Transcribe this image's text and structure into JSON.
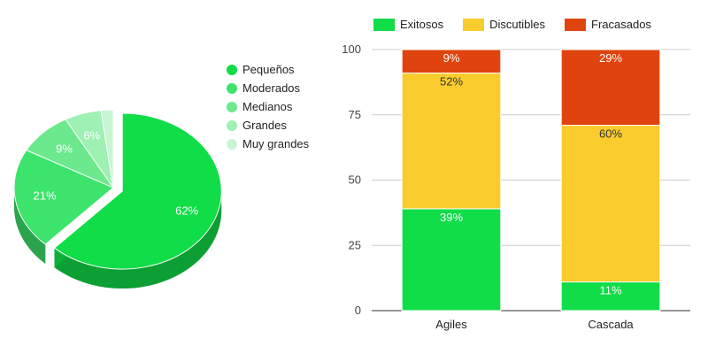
{
  "chart_data": [
    {
      "type": "pie",
      "style": "3d-exploded",
      "legend_position": "right",
      "slices": [
        {
          "label": "Pequeños",
          "value": 62,
          "value_label": "62%",
          "color": "#10dd47"
        },
        {
          "label": "Moderados",
          "value": 21,
          "value_label": "21%",
          "color": "#3de46b"
        },
        {
          "label": "Medianos",
          "value": 9,
          "value_label": "9%",
          "color": "#6be98c"
        },
        {
          "label": "Grandes",
          "value": 6,
          "value_label": "6%",
          "color": "#9ef0b3"
        },
        {
          "label": "Muy grandes",
          "value": 2,
          "value_label": "",
          "color": "#c7f6d2"
        }
      ]
    },
    {
      "type": "bar",
      "stacked": true,
      "legend_position": "top",
      "categories": [
        "Agiles",
        "Cascada"
      ],
      "series": [
        {
          "name": "Exitosos",
          "color": "#10dd47",
          "values": [
            39,
            11
          ],
          "labels": [
            "39%",
            "11%"
          ]
        },
        {
          "name": "Discutibles",
          "color": "#f9cb2c",
          "values": [
            52,
            60
          ],
          "labels": [
            "52%",
            "60%"
          ]
        },
        {
          "name": "Fracasados",
          "color": "#e0440e",
          "values": [
            9,
            29
          ],
          "labels": [
            "9%",
            "29%"
          ]
        }
      ],
      "ylim": [
        0,
        100
      ],
      "yticks": [
        0,
        25,
        50,
        75,
        100
      ],
      "grid": true
    }
  ]
}
